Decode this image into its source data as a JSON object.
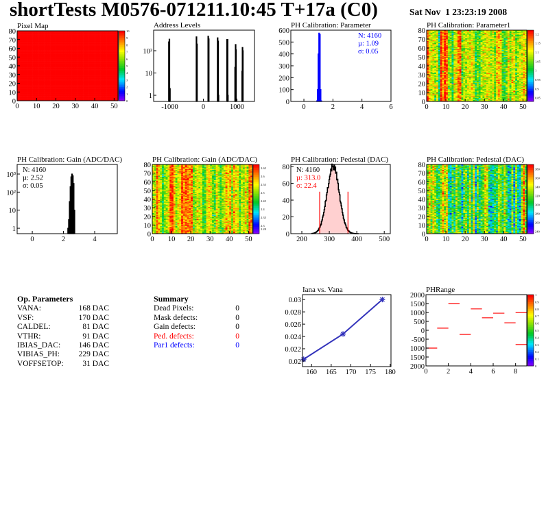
{
  "header": {
    "title": "shortTests M0576-071211.10:45 T+17a (C0)",
    "date": "Sat Nov  1 23:23:19 2008"
  },
  "op_parameters": {
    "title": "Op. Parameters",
    "rows": [
      {
        "name": "VANA:",
        "value": "168 DAC"
      },
      {
        "name": "VSF:",
        "value": "170 DAC"
      },
      {
        "name": "CALDEL:",
        "value": "81 DAC"
      },
      {
        "name": "VTHR:",
        "value": "91 DAC"
      },
      {
        "name": "IBIAS_DAC:",
        "value": "146 DAC"
      },
      {
        "name": "VIBIAS_PH:",
        "value": "229 DAC"
      },
      {
        "name": "VOFFSETOP:",
        "value": "31 DAC"
      }
    ]
  },
  "summary": {
    "title": "Summary",
    "rows": [
      {
        "name": "Dead Pixels:",
        "value": "0",
        "color": "#000000"
      },
      {
        "name": "Mask defects:",
        "value": "0",
        "color": "#000000"
      },
      {
        "name": "Gain defects:",
        "value": "0",
        "color": "#000000"
      },
      {
        "name": "Ped. defects:",
        "value": "0",
        "color": "#ff0000"
      },
      {
        "name": "Par1 defects:",
        "value": "0",
        "color": "#0000ff"
      }
    ]
  },
  "chart_data": [
    {
      "id": "pixel-map",
      "type": "heatmap",
      "title": "Pixel Map",
      "xlim": [
        0,
        52
      ],
      "ylim": [
        0,
        80
      ],
      "zlim": [
        0,
        10
      ],
      "uniform_value": 10,
      "xticks": [
        0,
        10,
        20,
        30,
        40,
        50
      ],
      "yticks": [
        0,
        10,
        20,
        30,
        40,
        50,
        60,
        70,
        80
      ],
      "zticks": [
        0,
        1,
        2,
        3,
        4,
        5,
        6,
        7,
        8,
        9,
        10
      ]
    },
    {
      "id": "address-levels",
      "type": "bar",
      "title": "Address Levels",
      "xlim": [
        -1480,
        1520
      ],
      "ylim": [
        0.53,
        840
      ],
      "logy": true,
      "xticks": [
        -1000,
        0,
        1000
      ],
      "yticks": [
        {
          "v": 1,
          "l": "1"
        },
        {
          "v": 10,
          "l": "10"
        },
        {
          "v": 100,
          "l": "10²"
        }
      ],
      "color": "#000000",
      "bins": [
        [
          -1030,
          250
        ],
        [
          -1015,
          330
        ],
        [
          -1000,
          2
        ],
        [
          -210,
          420
        ],
        [
          -195,
          200
        ],
        [
          140,
          450
        ],
        [
          155,
          340
        ],
        [
          420,
          380
        ],
        [
          435,
          270
        ],
        [
          445,
          1
        ],
        [
          700,
          320
        ],
        [
          715,
          320
        ],
        [
          725,
          1
        ],
        [
          940,
          18
        ],
        [
          955,
          190
        ],
        [
          965,
          110
        ],
        [
          1150,
          12
        ],
        [
          1160,
          140
        ],
        [
          1170,
          100
        ]
      ]
    },
    {
      "id": "ph-calibration-parameter",
      "type": "bar",
      "title": "PH Calibration: Parameter",
      "xlim": [
        -0.9,
        6
      ],
      "ylim": [
        0,
        600
      ],
      "xticks": [
        0,
        2,
        4,
        6
      ],
      "yticks": [
        0,
        100,
        200,
        300,
        400,
        500,
        600
      ],
      "color": "#0000ff",
      "bins": [
        [
          0.9,
          5
        ],
        [
          0.95,
          100
        ],
        [
          1.0,
          400
        ],
        [
          1.05,
          575
        ],
        [
          1.1,
          565
        ],
        [
          1.15,
          100
        ],
        [
          1.2,
          5
        ]
      ],
      "stats": [
        {
          "t": "N: 4160",
          "c": "#0000ff"
        },
        {
          "t": "µ: 1.09",
          "c": "#0000ff"
        },
        {
          "t": "σ: 0.05",
          "c": "#0000ff"
        }
      ],
      "stats_pos": "top-right"
    },
    {
      "id": "ph-calibration-parameter1",
      "type": "heatmap",
      "title": "PH Calibration: Parameter1",
      "xlim": [
        0,
        52
      ],
      "ylim": [
        0,
        80
      ],
      "zlim": [
        0.83,
        1.22
      ],
      "xticks": [
        0,
        10,
        20,
        30,
        40,
        50
      ],
      "yticks": [
        0,
        10,
        20,
        30,
        40,
        50,
        60,
        70,
        80
      ],
      "zticks": [
        0.85,
        0.9,
        0.95,
        1,
        1.05,
        1.1,
        1.15,
        1.2
      ],
      "mean": 1.09,
      "sigma": 0.05
    },
    {
      "id": "ph-calibration-gain-hist",
      "type": "bar",
      "title": "PH Calibration: Gain (ADC/DAC)",
      "xlim": [
        -0.97,
        5.45
      ],
      "ylim": [
        0.5,
        3400
      ],
      "logy": true,
      "xticks": [
        0,
        2,
        4
      ],
      "yticks": [
        {
          "v": 1,
          "l": "1"
        },
        {
          "v": 10,
          "l": "10"
        },
        {
          "v": 100,
          "l": "10²"
        },
        {
          "v": 1000,
          "l": "10³"
        }
      ],
      "color": "#000000",
      "bins": [
        [
          2.3,
          1
        ],
        [
          2.35,
          3
        ],
        [
          2.4,
          30
        ],
        [
          2.45,
          200
        ],
        [
          2.5,
          700
        ],
        [
          2.55,
          1000
        ],
        [
          2.6,
          800
        ],
        [
          2.65,
          300
        ],
        [
          2.7,
          10
        ]
      ],
      "stats": [
        {
          "t": "N: 4160",
          "c": "#000000"
        },
        {
          "t": "µ: 2.52",
          "c": "#000000"
        },
        {
          "t": "σ: 0.05",
          "c": "#000000"
        }
      ],
      "stats_pos": "top-left"
    },
    {
      "id": "ph-calibration-gain-map",
      "type": "heatmap",
      "title": "PH Calibration: Gain (ADC/DAC)",
      "xlim": [
        0,
        52
      ],
      "ylim": [
        0,
        80
      ],
      "zlim": [
        2.25,
        2.67
      ],
      "xticks": [
        0,
        10,
        20,
        30,
        40,
        50
      ],
      "yticks": [
        0,
        10,
        20,
        30,
        40,
        50,
        60,
        70,
        80
      ],
      "zticks": [
        2.28,
        2.3,
        2.35,
        2.4,
        2.45,
        2.5,
        2.55,
        2.6,
        2.65
      ],
      "mean": 2.52,
      "sigma": 0.05
    },
    {
      "id": "ph-calibration-pedestal-hist",
      "type": "bar",
      "title": "PH Calibration: Pedestal (DAC)",
      "xlim": [
        160,
        522
      ],
      "ylim": [
        0,
        82.5
      ],
      "xticks": [
        200,
        300,
        400,
        500
      ],
      "yticks": [
        0,
        20,
        40,
        60,
        80
      ],
      "color": "#000000",
      "mean": 313.0,
      "sigma": 22.4,
      "peak": 80,
      "cut_lines": [
        265,
        368
      ],
      "cut_height": 50,
      "stats": [
        {
          "t": "N: 4160",
          "c": "#000000"
        },
        {
          "t": "µ: 313.0",
          "c": "#ff0000"
        },
        {
          "t": "σ: 22.4",
          "c": "#ff0000"
        }
      ],
      "stats_pos": "top-left"
    },
    {
      "id": "ph-calibration-pedestal-map",
      "type": "heatmap",
      "title": "PH Calibration: Pedestal (DAC)",
      "xlim": [
        0,
        52
      ],
      "ylim": [
        0,
        80
      ],
      "zlim": [
        235,
        390
      ],
      "xticks": [
        0,
        10,
        20,
        30,
        40,
        50
      ],
      "yticks": [
        0,
        10,
        20,
        30,
        40,
        50,
        60,
        70,
        80
      ],
      "zticks": [
        240,
        260,
        280,
        300,
        320,
        340,
        360,
        380
      ],
      "mean": 313,
      "sigma": 22.4
    },
    {
      "id": "iana-vs-vana",
      "type": "line",
      "title": "Iana vs. Vana",
      "xlim": [
        157.7,
        180.2
      ],
      "ylim": [
        0.0191,
        0.0308
      ],
      "xticks": [
        160,
        165,
        170,
        175,
        180
      ],
      "yticks": [
        0.02,
        0.022,
        0.024,
        0.026,
        0.028,
        0.03
      ],
      "color": "#3333bb",
      "x": [
        158,
        168,
        178
      ],
      "y": [
        0.0203,
        0.0244,
        0.03
      ]
    },
    {
      "id": "ph-range",
      "type": "bar",
      "title": "PHRange",
      "xlim": [
        0,
        9
      ],
      "ylim": [
        -2000,
        2000
      ],
      "zlim": [
        0,
        1
      ],
      "xticks": [
        0,
        2,
        4,
        6,
        8
      ],
      "yticks": [
        {
          "v": 2000,
          "l": "2000"
        },
        {
          "v": 1500,
          "l": "1500"
        },
        {
          "v": 1000,
          "l": "1000"
        },
        {
          "v": 500,
          "l": "500"
        },
        {
          "v": 0,
          "l": "0"
        },
        {
          "v": -500,
          "l": "-500"
        },
        {
          "v": -1000,
          "l": "1000"
        },
        {
          "v": -1500,
          "l": "1500"
        },
        {
          "v": -2000,
          "l": "2000"
        }
      ],
      "zticks": [
        0,
        0.1,
        0.2,
        0.3,
        0.4,
        0.5,
        0.6,
        0.7,
        0.8,
        0.9,
        1
      ],
      "color": "#ff0000",
      "segments": [
        [
          0,
          1,
          -1000
        ],
        [
          1,
          2,
          120
        ],
        [
          2,
          3,
          1500
        ],
        [
          3,
          4,
          -230
        ],
        [
          4,
          5,
          1200
        ],
        [
          5,
          6,
          700
        ],
        [
          6,
          7,
          960
        ],
        [
          7,
          8,
          420
        ],
        [
          8,
          9,
          1000
        ],
        [
          8,
          9,
          -800
        ]
      ]
    }
  ]
}
